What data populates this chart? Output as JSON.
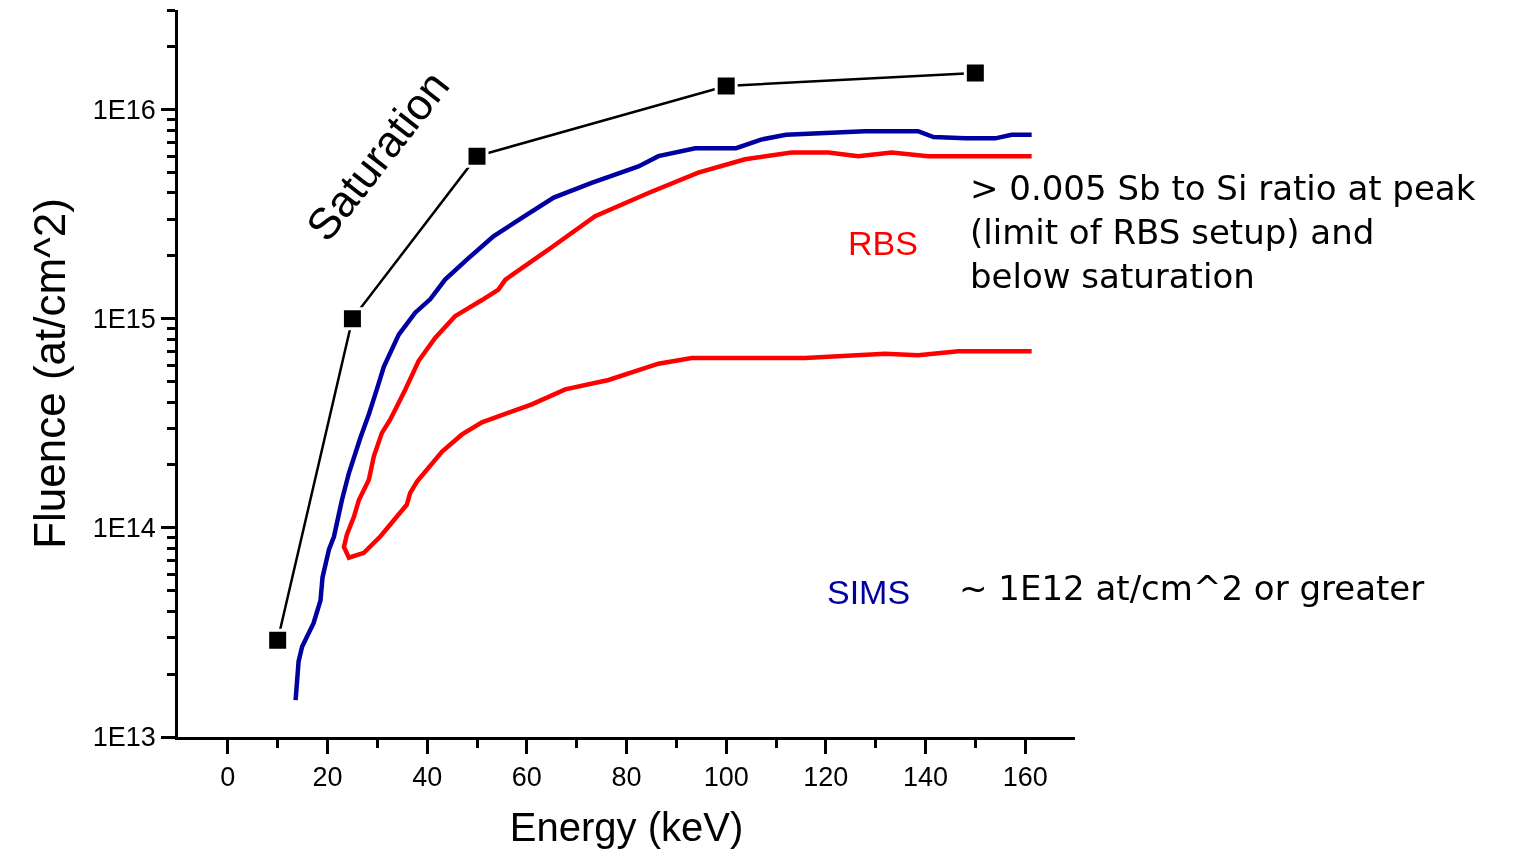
{
  "chart_data": {
    "type": "line",
    "xlabel": "Energy (keV)",
    "ylabel": "Fluence (at/cm^2)",
    "log": "y",
    "legend": false,
    "line_style": "solid",
    "xlim": [
      -10,
      170
    ],
    "ylim": [
      10000000000000.0,
      3e+16
    ],
    "xticks": [
      0,
      20,
      40,
      60,
      80,
      100,
      120,
      140,
      160,
      {
        "value": 10,
        "label": null
      },
      {
        "value": 30,
        "label": null
      },
      {
        "value": 50,
        "label": null
      },
      {
        "value": 70,
        "label": null
      },
      {
        "value": 90,
        "label": null
      },
      {
        "value": 110,
        "label": null
      },
      {
        "value": 130,
        "label": null
      },
      {
        "value": 150,
        "label": null
      }
    ],
    "yticks": [
      {
        "value": 10000000000000.0,
        "label": "1E13"
      },
      {
        "value": 100000000000000.0,
        "label": "1E14"
      },
      {
        "value": 1000000000000000.0,
        "label": "1E15"
      },
      {
        "value": 1e+16,
        "label": "1E16"
      },
      {
        "value": 20000000000000.0,
        "label": null
      },
      {
        "value": 30000000000000.0,
        "label": null
      },
      {
        "value": 40000000000000.0,
        "label": null
      },
      {
        "value": 50000000000000.0,
        "label": null
      },
      {
        "value": 60000000000000.0,
        "label": null
      },
      {
        "value": 70000000000000.0,
        "label": null
      },
      {
        "value": 80000000000000.0,
        "label": null
      },
      {
        "value": 90000000000000.0,
        "label": null
      },
      {
        "value": 200000000000000.0,
        "label": null
      },
      {
        "value": 300000000000000.0,
        "label": null
      },
      {
        "value": 400000000000000.0,
        "label": null
      },
      {
        "value": 500000000000000.0,
        "label": null
      },
      {
        "value": 600000000000000.0,
        "label": null
      },
      {
        "value": 700000000000000.0,
        "label": null
      },
      {
        "value": 800000000000000.0,
        "label": null
      },
      {
        "value": 900000000000000.0,
        "label": null
      },
      {
        "value": 2000000000000000.0,
        "label": null
      },
      {
        "value": 3000000000000000.0,
        "label": null
      },
      {
        "value": 4000000000000000.0,
        "label": null
      },
      {
        "value": 5000000000000000.0,
        "label": null
      },
      {
        "value": 6000000000000000.0,
        "label": null
      },
      {
        "value": 7000000000000000.0,
        "label": null
      },
      {
        "value": 8000000000000000.0,
        "label": null
      },
      {
        "value": 9000000000000000.0,
        "label": null
      },
      {
        "value": 2e+16,
        "label": null
      },
      {
        "value": 3e+16,
        "label": null
      }
    ],
    "series": [
      {
        "name": "Saturation",
        "color": "#000000",
        "marker": "square",
        "x": [
          10,
          25,
          50,
          100,
          150
        ],
        "values": [
          29000000000000.0,
          1000000000000000.0,
          6000000000000000.0,
          1.3e+16,
          1.5e+16
        ]
      },
      {
        "name": "SIMS",
        "color": "#0000a0",
        "marker": "none",
        "x": [
          13.6,
          14.2,
          14.9,
          17.2,
          18.6,
          19.0,
          20.3,
          21.3,
          22.9,
          24.3,
          26.6,
          28.3,
          29.9,
          31.3,
          34.3,
          37.6,
          40.6,
          43.6,
          48.3,
          53.3,
          59,
          65.4,
          73,
          82.4,
          86.4,
          93.8,
          102,
          107,
          112,
          127.8,
          138.5,
          141.6,
          148,
          154,
          157.3,
          161.3
        ],
        "values": [
          15000000000000.0,
          23000000000000.0,
          27000000000000.0,
          35000000000000.0,
          45000000000000.0,
          58000000000000.0,
          79000000000000.0,
          91000000000000.0,
          136000000000000.0,
          183000000000000.0,
          270000000000000.0,
          350000000000000.0,
          460000000000000.0,
          590000000000000.0,
          840000000000000.0,
          1070000000000000.0,
          1240000000000000.0,
          1540000000000000.0,
          1950000000000000.0,
          2480000000000000.0,
          3040000000000000.0,
          3800000000000000.0,
          4470000000000000.0,
          5360000000000000.0,
          6000000000000000.0,
          6550000000000000.0,
          6550000000000000.0,
          7200000000000000.0,
          7600000000000000.0,
          7900000000000000.0,
          7900000000000000.0,
          7400000000000000.0,
          7300000000000000.0,
          7300000000000000.0,
          7600000000000000.0,
          7600000000000000.0
        ]
      },
      {
        "name": "RBS",
        "color": "#ff0000",
        "marker": "none",
        "x": [
          161.3,
          140.5,
          133.2,
          126.5,
          120.5,
          113.1,
          103.8,
          94.4,
          84.4,
          73.7,
          65,
          55.7,
          54.3,
          51,
          45.6,
          41.6,
          38.3,
          35.6,
          32.6,
          30.9,
          29.3,
          28.3,
          26.3,
          25.3,
          23.9,
          23.3,
          24.3,
          27.3,
          30.6,
          33.6,
          35.9,
          36.6,
          38,
          43,
          47,
          51,
          61,
          67.7,
          76.4,
          86.4,
          93.1,
          115.8,
          131.9,
          138.5,
          146.6,
          161.3
        ],
        "values": [
          6000000000000000.0,
          6000000000000000.0,
          6250000000000000.0,
          6000000000000000.0,
          6250000000000000.0,
          6250000000000000.0,
          5800000000000000.0,
          5000000000000000.0,
          4000000000000000.0,
          3100000000000000.0,
          2200000000000000.0,
          1540000000000000.0,
          1380000000000000.0,
          1230000000000000.0,
          1030000000000000.0,
          810000000000000.0,
          630000000000000.0,
          458000000000000.0,
          330000000000000.0,
          284000000000000.0,
          220000000000000.0,
          170000000000000.0,
          136000000000000.0,
          113000000000000.0,
          93000000000000.0,
          81000000000000.0,
          72000000000000.0,
          76000000000000.0,
          91000000000000.0,
          111000000000000.0,
          129000000000000.0,
          147000000000000.0,
          167000000000000.0,
          232000000000000.0,
          280000000000000.0,
          320000000000000.0,
          390000000000000.0,
          460000000000000.0,
          510000000000000.0,
          610000000000000.0,
          650000000000000.0,
          650000000000000.0,
          680000000000000.0,
          670000000000000.0,
          700000000000000.0,
          700000000000000.0
        ]
      }
    ],
    "annotations": [
      "> 0.005 Sb to Si ratio at peak\n(limit of RBS setup) and\nbelow saturation",
      "~ 1E12 at/cm^2 or greater"
    ]
  }
}
